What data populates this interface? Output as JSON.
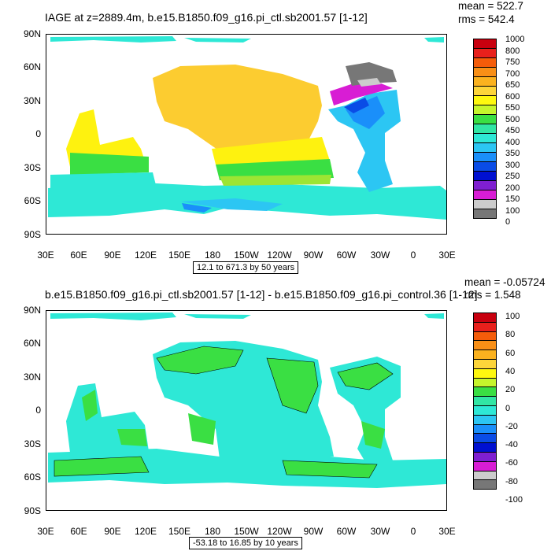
{
  "panel1": {
    "title": "IAGE at z=2889.4m, b.e15.B1850.f09_g16.pi_ctl.sb2001.57 [1-12]",
    "mean": "mean = 522.7",
    "rms": "rms = 542.4",
    "range": "12.1 to 671.3 by 50 years",
    "colorbar_labels": [
      "1000",
      "800",
      "750",
      "700",
      "650",
      "600",
      "550",
      "500",
      "450",
      "400",
      "350",
      "300",
      "250",
      "200",
      "150",
      "100",
      "0"
    ],
    "colorbar_colors": [
      "#c8000f",
      "#e8201c",
      "#f45c0a",
      "#f98f16",
      "#fbb21f",
      "#fdd53a",
      "#fef80f",
      "#c6f52c",
      "#3adf43",
      "#31e6a4",
      "#2ee8d6",
      "#2cc6f3",
      "#1a8ffa",
      "#0a4ce6",
      "#0010d1",
      "#7f1fd1",
      "#d81dd4",
      "#cccccc",
      "#777777"
    ]
  },
  "panel2": {
    "title": "b.e15.B1850.f09_g16.pi_ctl.sb2001.57 [1-12] - b.e15.B1850.f09_g16.pi_control.36 [1-12]",
    "mean": "mean = -0.05724",
    "rms": "rms = 1.548",
    "range": "-53.18 to 16.85 by 10 years",
    "colorbar_labels": [
      "100",
      "80",
      "60",
      "40",
      "20",
      "0",
      "-20",
      "-40",
      "-60",
      "-80",
      "-100"
    ],
    "colorbar_colors": [
      "#c8000f",
      "#e8201c",
      "#f45c0a",
      "#f98f16",
      "#fbb21f",
      "#fdd53a",
      "#fef80f",
      "#c6f52c",
      "#3adf43",
      "#31e6a4",
      "#2ee8d6",
      "#2cc6f3",
      "#1a8ffa",
      "#0a4ce6",
      "#0010d1",
      "#7f1fd1",
      "#d81dd4",
      "#cccccc",
      "#777777"
    ]
  },
  "axes": {
    "lat_labels": [
      "90N",
      "60N",
      "30N",
      "0",
      "30S",
      "60S",
      "90S"
    ],
    "lon_labels": [
      "30E",
      "60E",
      "90E",
      "120E",
      "150E",
      "180",
      "150W",
      "120W",
      "90W",
      "60W",
      "30W",
      "0",
      "30E"
    ]
  },
  "colors": {
    "ocean_orange": "#fccc30",
    "ocean_yellow": "#fef20f",
    "ocean_green": "#3adf43",
    "ocean_lightgreen": "#9de533",
    "ocean_cyan": "#2ee8d6",
    "ocean_blue": "#2cc6f3",
    "ocean_mid": "#1a8ffa",
    "ocean_deep": "#0a4ce6",
    "magenta": "#d81dd4",
    "grey": "#777777",
    "lightgrey": "#cccccc",
    "diff_cyan": "#2ee8d6",
    "diff_green": "#3adf43"
  }
}
